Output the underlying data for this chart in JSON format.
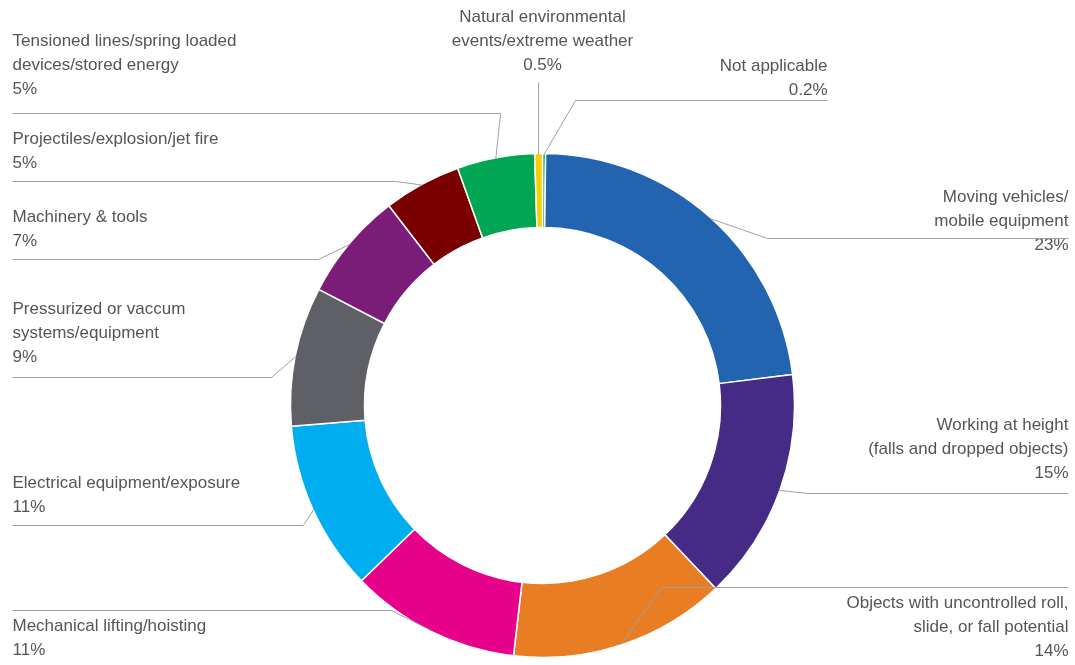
{
  "chart_data": {
    "type": "donut",
    "categories": [
      "Not applicable",
      "Moving vehicles/\nmobile equipment",
      "Working at height\n(falls and dropped objects)",
      "Objects with uncontrolled roll,\nslide, or fall potential",
      "Mechanical lifting/hoisting",
      "Electrical equipment/exposure",
      "Pressurized or vaccum\nsystems/equipment",
      "Machinery & tools",
      "Projectiles/explosion/jet fire",
      "Tensioned lines/spring loaded\ndevices/stored energy",
      "Natural environmental\nevents/extreme weather"
    ],
    "values": [
      0.2,
      23,
      15,
      14,
      11,
      11,
      9,
      7,
      5,
      5,
      0.5
    ],
    "value_labels": [
      "0.2%",
      "23%",
      "15%",
      "14%",
      "11%",
      "11%",
      "9%",
      "7%",
      "5%",
      "5%",
      "0.5%"
    ],
    "colors": [
      "#00a651",
      "#2264b0",
      "#452a86",
      "#e97d23",
      "#e6008a",
      "#00aeef",
      "#5e6066",
      "#7b1c78",
      "#7a0000",
      "#00a651",
      "#f5d000"
    ]
  }
}
